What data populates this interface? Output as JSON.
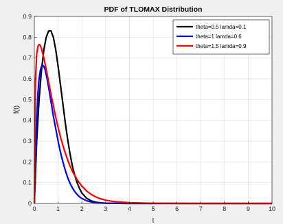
{
  "chart_data": {
    "type": "line",
    "title": "PDF of TLOMAX Distribution",
    "xlabel": "t",
    "ylabel": "f(t)",
    "xlim": [
      0,
      10
    ],
    "ylim": [
      0,
      0.9
    ],
    "xticks": [
      0,
      1,
      2,
      3,
      4,
      5,
      6,
      7,
      8,
      9,
      10
    ],
    "yticks": [
      0,
      0.1,
      0.2,
      0.3,
      0.4,
      0.5,
      0.6,
      0.7,
      0.8,
      0.9
    ],
    "xtick_labels": [
      "0",
      "1",
      "2",
      "3",
      "4",
      "5",
      "6",
      "7",
      "8",
      "9",
      "10"
    ],
    "ytick_labels": [
      "0",
      "0.1",
      "0.2",
      "0.3",
      "0.4",
      "0.5",
      "0.6",
      "0.7",
      "0.8",
      "0.9"
    ],
    "grid": true,
    "legend_position": "top-right",
    "series": [
      {
        "name": "theta=0.5 lamda=0.1",
        "color": "#000000",
        "x": [
          0,
          0.1,
          0.2,
          0.3,
          0.4,
          0.5,
          0.6,
          0.7,
          0.8,
          0.9,
          1.0,
          1.1,
          1.2,
          1.3,
          1.4,
          1.5,
          1.6,
          1.7,
          1.8,
          1.9,
          2.0,
          2.2,
          2.4,
          2.6,
          2.8,
          3.0,
          3.3,
          3.6,
          4.0,
          4.5,
          5,
          6,
          7,
          8,
          9,
          10
        ],
        "y": [
          0,
          0.3,
          0.5,
          0.64,
          0.74,
          0.8,
          0.83,
          0.83,
          0.8,
          0.74,
          0.66,
          0.57,
          0.48,
          0.39,
          0.31,
          0.24,
          0.18,
          0.135,
          0.1,
          0.072,
          0.05,
          0.025,
          0.012,
          0.006,
          0.003,
          0.0015,
          0.0006,
          0.0002,
          0.0001,
          0,
          0,
          0,
          0,
          0,
          0,
          0
        ]
      },
      {
        "name": "theta=1 lamda=0.6",
        "color": "#0000ff",
        "x": [
          0,
          0.05,
          0.1,
          0.15,
          0.2,
          0.25,
          0.3,
          0.35,
          0.4,
          0.45,
          0.5,
          0.6,
          0.7,
          0.8,
          0.9,
          1.0,
          1.1,
          1.2,
          1.3,
          1.4,
          1.5,
          1.6,
          1.7,
          1.8,
          1.9,
          2.0,
          2.2,
          2.4,
          2.6,
          2.8,
          3.0,
          3.5,
          4,
          5,
          6,
          7,
          8,
          9,
          10
        ],
        "y": [
          0,
          0.25,
          0.42,
          0.53,
          0.6,
          0.64,
          0.66,
          0.665,
          0.66,
          0.645,
          0.62,
          0.56,
          0.49,
          0.42,
          0.36,
          0.3,
          0.245,
          0.2,
          0.16,
          0.125,
          0.097,
          0.075,
          0.057,
          0.043,
          0.032,
          0.024,
          0.013,
          0.007,
          0.0037,
          0.002,
          0.001,
          0.0002,
          0,
          0,
          0,
          0,
          0,
          0,
          0
        ]
      },
      {
        "name": "theta=1.5 lamda=0.9",
        "color": "#ff0000",
        "x": [
          0,
          0.025,
          0.05,
          0.1,
          0.15,
          0.2,
          0.25,
          0.3,
          0.4,
          0.5,
          0.6,
          0.7,
          0.8,
          0.9,
          1.0,
          1.1,
          1.2,
          1.3,
          1.4,
          1.5,
          1.6,
          1.8,
          2.0,
          2.2,
          2.4,
          2.6,
          2.8,
          3.0,
          3.3,
          3.6,
          4.0,
          4.5,
          5,
          5.5,
          6,
          7,
          8,
          9,
          10
        ],
        "y": [
          0,
          0.45,
          0.6,
          0.72,
          0.755,
          0.765,
          0.76,
          0.745,
          0.7,
          0.645,
          0.585,
          0.525,
          0.47,
          0.415,
          0.365,
          0.32,
          0.28,
          0.243,
          0.21,
          0.18,
          0.155,
          0.114,
          0.083,
          0.06,
          0.043,
          0.031,
          0.022,
          0.016,
          0.01,
          0.0065,
          0.0038,
          0.002,
          0.001,
          0.0006,
          0.0003,
          0.0001,
          0,
          0,
          0
        ]
      }
    ]
  }
}
